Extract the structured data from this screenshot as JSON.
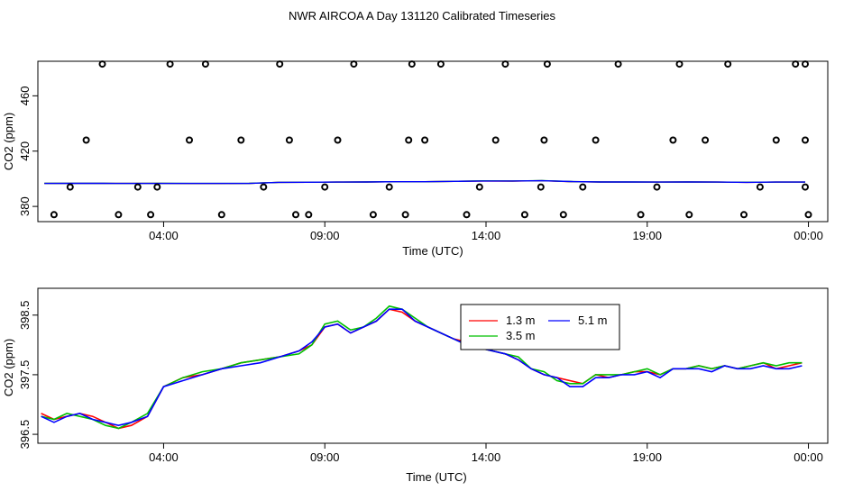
{
  "title": "NWR AIRCOA A  Day 131120  Calibrated Timeseries",
  "chart_data": [
    {
      "type": "scatter",
      "xlabel": "Time (UTC)",
      "ylabel": "CO2 (ppm)",
      "x_tick_labels": [
        "04:00",
        "09:00",
        "14:00",
        "19:00",
        "00:00"
      ],
      "x_ticks_hours": [
        4,
        9,
        14,
        19,
        24
      ],
      "xlim_hours": [
        0.1,
        24.6
      ],
      "y_ticks": [
        380,
        420,
        460
      ],
      "ylim": [
        369,
        485
      ],
      "points_x_hours": [
        0.6,
        1.1,
        1.6,
        2.1,
        2.6,
        3.2,
        3.6,
        3.8,
        4.2,
        4.8,
        5.3,
        5.8,
        6.4,
        7.1,
        7.6,
        7.9,
        8.1,
        8.5,
        9.0,
        9.4,
        9.9,
        10.5,
        11.0,
        11.5,
        11.6,
        11.7,
        12.1,
        12.6,
        13.4,
        13.8,
        14.3,
        14.6,
        15.2,
        15.7,
        15.8,
        15.9,
        16.4,
        17.0,
        17.4,
        18.1,
        18.8,
        19.3,
        19.8,
        20.0,
        20.3,
        20.8,
        21.5,
        22.0,
        22.5,
        23.0,
        23.6,
        23.9,
        23.9,
        23.9,
        24.0
      ],
      "points_y_ppm": [
        374,
        394,
        428,
        483,
        374,
        394,
        374,
        394,
        483,
        428,
        483,
        374,
        428,
        394,
        483,
        428,
        374,
        374,
        394,
        428,
        483,
        374,
        394,
        374,
        428,
        483,
        428,
        483,
        374,
        394,
        428,
        483,
        374,
        394,
        428,
        483,
        374,
        394,
        428,
        483,
        374,
        394,
        428,
        483,
        374,
        428,
        483,
        374,
        394,
        428,
        483,
        483,
        428,
        394,
        374
      ],
      "series": [
        {
          "color": "#ff0000",
          "values": [
            396.6,
            396.6,
            396.6,
            396.6,
            396.6,
            396.5,
            396.5,
            396.6,
            397.4,
            397.5,
            397.6,
            397.7,
            397.9,
            397.9,
            398.1,
            398.4,
            398.3,
            398.6,
            397.9,
            397.7,
            397.6,
            397.6,
            397.7,
            397.6,
            397.4,
            397.6,
            397.6
          ]
        },
        {
          "color": "#00c000",
          "values": [
            396.7,
            396.7,
            396.7,
            396.6,
            396.7,
            396.6,
            396.6,
            396.7,
            397.4,
            397.5,
            397.6,
            397.7,
            397.9,
            397.9,
            398.1,
            398.5,
            398.4,
            398.7,
            398.0,
            397.7,
            397.7,
            397.6,
            397.7,
            397.6,
            397.5,
            397.6,
            397.6
          ]
        },
        {
          "color": "#0000ff",
          "values": [
            396.6,
            396.7,
            396.7,
            396.6,
            396.6,
            396.6,
            396.6,
            396.6,
            397.4,
            397.5,
            397.6,
            397.7,
            397.9,
            397.9,
            398.1,
            398.4,
            398.4,
            398.6,
            398.0,
            397.7,
            397.7,
            397.6,
            397.7,
            397.6,
            397.4,
            397.6,
            397.6
          ]
        }
      ]
    },
    {
      "type": "line",
      "xlabel": "Time (UTC)",
      "ylabel": "CO2 (ppm)",
      "x_tick_labels": [
        "04:00",
        "09:00",
        "14:00",
        "19:00",
        "00:00"
      ],
      "x_ticks_hours": [
        4,
        9,
        14,
        19,
        24
      ],
      "xlim_hours": [
        0.1,
        24.6
      ],
      "y_ticks": [
        396.5,
        397.5,
        398.5
      ],
      "ylim": [
        396.35,
        398.95
      ],
      "legend": {
        "placement": "top-center",
        "entries": [
          {
            "label": "1.3 m",
            "color": "#ff0000"
          },
          {
            "label": "5.1 m",
            "color": "#0000ff"
          },
          {
            "label": "3.5 m",
            "color": "#00c000"
          }
        ]
      },
      "x_hours": [
        0.2,
        0.6,
        1.0,
        1.4,
        1.8,
        2.2,
        2.6,
        3.0,
        3.5,
        4.0,
        4.6,
        5.2,
        5.8,
        6.4,
        7.0,
        7.6,
        8.2,
        8.6,
        9.0,
        9.4,
        9.8,
        10.2,
        10.6,
        11.0,
        11.4,
        11.8,
        12.2,
        12.6,
        13.0,
        13.4,
        13.8,
        14.2,
        14.6,
        15.0,
        15.4,
        15.8,
        16.2,
        16.6,
        17.0,
        17.4,
        17.8,
        18.2,
        18.6,
        19.0,
        19.4,
        19.8,
        20.2,
        20.6,
        21.0,
        21.4,
        21.8,
        22.2,
        22.6,
        23.0,
        23.4,
        23.8
      ],
      "series": [
        {
          "name": "1.3 m",
          "color": "#ff0000",
          "values": [
            396.85,
            396.75,
            396.8,
            396.85,
            396.8,
            396.7,
            396.6,
            396.65,
            396.8,
            397.3,
            397.45,
            397.5,
            397.6,
            397.7,
            397.75,
            397.8,
            397.9,
            398.0,
            398.3,
            398.35,
            398.2,
            398.3,
            398.4,
            398.6,
            398.55,
            398.4,
            398.3,
            398.2,
            398.1,
            398.05,
            397.95,
            397.9,
            397.85,
            397.75,
            397.6,
            397.5,
            397.45,
            397.4,
            397.35,
            397.5,
            397.45,
            397.5,
            397.55,
            397.55,
            397.5,
            397.6,
            397.6,
            397.65,
            397.6,
            397.65,
            397.6,
            397.65,
            397.7,
            397.6,
            397.65,
            397.7
          ]
        },
        {
          "name": "3.5 m",
          "color": "#00c000",
          "values": [
            396.8,
            396.75,
            396.85,
            396.8,
            396.75,
            396.65,
            396.6,
            396.7,
            396.85,
            397.3,
            397.45,
            397.55,
            397.6,
            397.7,
            397.75,
            397.8,
            397.85,
            398.0,
            398.35,
            398.4,
            398.25,
            398.3,
            398.45,
            398.65,
            398.6,
            398.45,
            398.3,
            398.2,
            398.1,
            398.0,
            397.95,
            397.9,
            397.85,
            397.8,
            397.6,
            397.55,
            397.4,
            397.35,
            397.35,
            397.5,
            397.5,
            397.5,
            397.55,
            397.6,
            397.5,
            397.6,
            397.6,
            397.65,
            397.6,
            397.65,
            397.6,
            397.65,
            397.7,
            397.65,
            397.7,
            397.7
          ]
        },
        {
          "name": "5.1 m",
          "color": "#0000ff",
          "values": [
            396.8,
            396.7,
            396.8,
            396.85,
            396.75,
            396.7,
            396.65,
            396.7,
            396.8,
            397.3,
            397.4,
            397.5,
            397.6,
            397.65,
            397.7,
            397.8,
            397.9,
            398.05,
            398.3,
            398.35,
            398.2,
            398.3,
            398.4,
            398.6,
            398.6,
            398.4,
            398.3,
            398.2,
            398.1,
            398.0,
            397.95,
            397.9,
            397.85,
            397.75,
            397.6,
            397.5,
            397.45,
            397.3,
            397.3,
            397.45,
            397.45,
            397.5,
            397.5,
            397.55,
            397.45,
            397.6,
            397.6,
            397.6,
            397.55,
            397.65,
            397.6,
            397.6,
            397.65,
            397.6,
            397.6,
            397.65
          ]
        }
      ]
    }
  ]
}
